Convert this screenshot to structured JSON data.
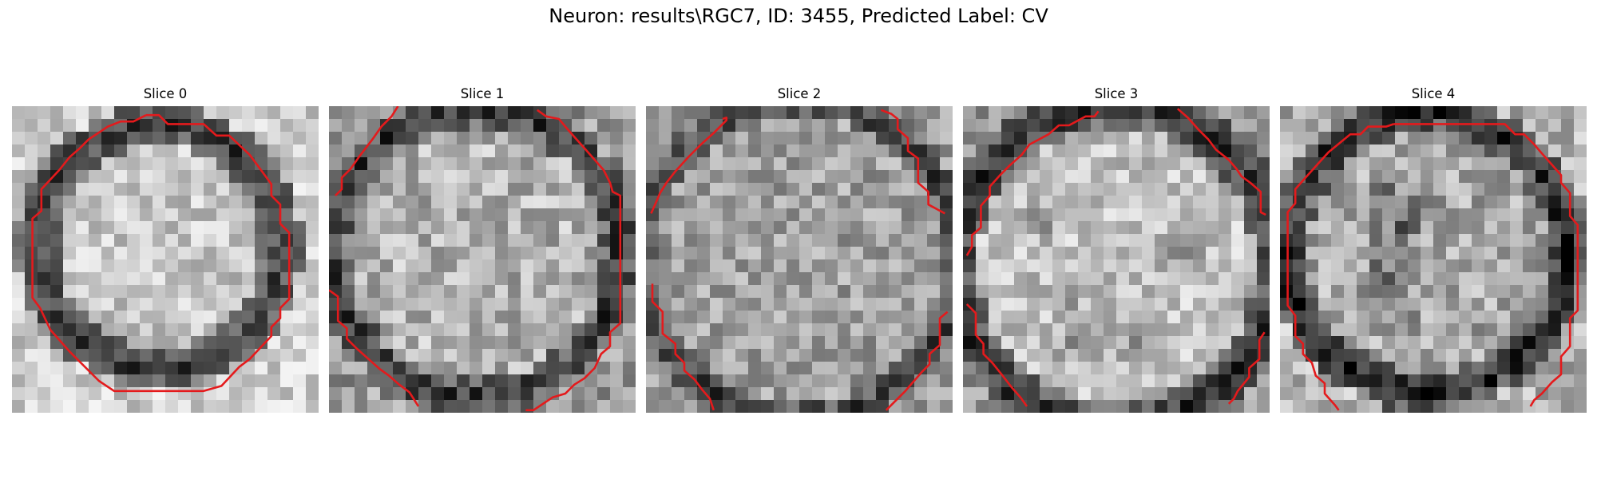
{
  "figure": {
    "suptitle": "Neuron: results\\RGC7, ID: 3455, Predicted Label: CV"
  },
  "panels": [
    {
      "title": "Slice 0"
    },
    {
      "title": "Slice 1"
    },
    {
      "title": "Slice 2"
    },
    {
      "title": "Slice 3"
    },
    {
      "title": "Slice 4"
    }
  ],
  "style": {
    "contour_color": "#e41a1c",
    "colormap": "gray"
  }
}
